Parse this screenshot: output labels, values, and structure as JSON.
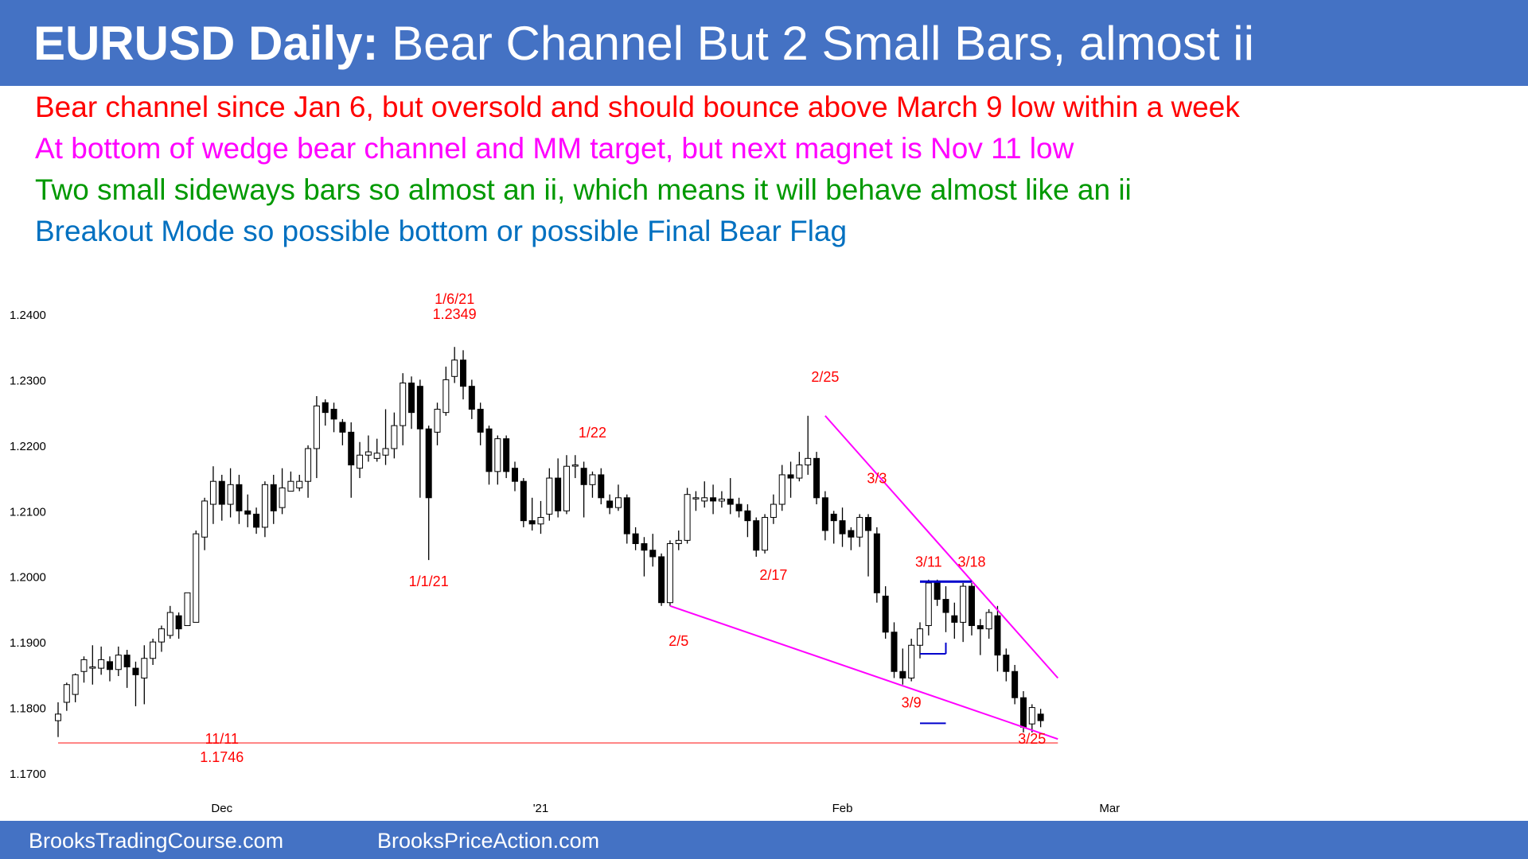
{
  "header": {
    "title_bold": "EURUSD Daily:",
    "title_rest": " Bear Channel But 2 Small Bars, almost ii"
  },
  "bullets": [
    {
      "text": "Bear channel since Jan 6, but oversold and should bounce above March 9 low within a week",
      "color": "#ff0000"
    },
    {
      "text": "At bottom of wedge bear channel and MM target, but next magnet is Nov 11 low",
      "color": "#ff00ff"
    },
    {
      "text": "Two small sideways bars so almost an ii, which means it will behave almost like an ii",
      "color": "#009900"
    },
    {
      "text": "Breakout Mode so possible bottom or possible Final Bear Flag",
      "color": "#0070c0"
    }
  ],
  "footer": {
    "left": "BrooksTradingCourse.com",
    "right": "BrooksPriceAction.com"
  },
  "colors": {
    "banner": "#4472c4",
    "annotation": "#ff0000",
    "wedge": "#ff00ff",
    "support_line": "#ff8080",
    "range_marker": "#0000cc"
  },
  "chart_data": {
    "type": "candlestick",
    "ylim": [
      1.17,
      1.24
    ],
    "y_ticks": [
      "1.2400",
      "1.2300",
      "1.2200",
      "1.2100",
      "1.2000",
      "1.1900",
      "1.1800",
      "1.1700"
    ],
    "x_tick_labels": [
      {
        "label": "Dec",
        "bar": 19
      },
      {
        "label": "'21",
        "bar": 56
      },
      {
        "label": "Feb",
        "bar": 91
      },
      {
        "label": "Mar",
        "bar": 122
      }
    ],
    "candles": [
      [
        1.178,
        1.179,
        1.1755,
        1.1808
      ],
      [
        1.1808,
        1.1835,
        1.1795,
        1.1838
      ],
      [
        1.182,
        1.185,
        1.1808,
        1.1852
      ],
      [
        1.1855,
        1.1873,
        1.1838,
        1.1878
      ],
      [
        1.186,
        1.1862,
        1.1835,
        1.1895
      ],
      [
        1.186,
        1.1873,
        1.185,
        1.1893
      ],
      [
        1.187,
        1.1858,
        1.184,
        1.1878
      ],
      [
        1.1858,
        1.188,
        1.1848,
        1.1893
      ],
      [
        1.188,
        1.1862,
        1.183,
        1.1888
      ],
      [
        1.186,
        1.185,
        1.1802,
        1.187
      ],
      [
        1.1845,
        1.1875,
        1.1805,
        1.1895
      ],
      [
        1.1875,
        1.19,
        1.1865,
        1.1905
      ],
      [
        1.19,
        1.192,
        1.1885,
        1.1925
      ],
      [
        1.191,
        1.1945,
        1.1905,
        1.1955
      ],
      [
        1.194,
        1.192,
        1.1905,
        1.1945
      ],
      [
        1.1925,
        1.1975,
        1.1925,
        1.1975
      ],
      [
        1.193,
        1.2065,
        1.193,
        1.207
      ],
      [
        1.206,
        1.2115,
        1.204,
        1.212
      ],
      [
        1.211,
        1.2145,
        1.208,
        1.2168
      ],
      [
        1.2145,
        1.211,
        1.2085,
        1.2155
      ],
      [
        1.211,
        1.214,
        1.209,
        1.2165
      ],
      [
        1.214,
        1.21,
        1.208,
        1.2155
      ],
      [
        1.21,
        1.2095,
        1.2075,
        1.2125
      ],
      [
        1.2095,
        1.2075,
        1.2065,
        1.2105
      ],
      [
        1.2075,
        1.214,
        1.206,
        1.2145
      ],
      [
        1.214,
        1.21,
        1.208,
        1.2155
      ],
      [
        1.2105,
        1.2135,
        1.2095,
        1.2165
      ],
      [
        1.213,
        1.2145,
        1.213,
        1.216
      ],
      [
        1.2135,
        1.2145,
        1.213,
        1.2155
      ],
      [
        1.2145,
        1.2195,
        1.212,
        1.22
      ],
      [
        1.2195,
        1.226,
        1.215,
        1.2275
      ],
      [
        1.2265,
        1.225,
        1.223,
        1.227
      ],
      [
        1.2255,
        1.224,
        1.222,
        1.2265
      ],
      [
        1.2235,
        1.222,
        1.22,
        1.224
      ],
      [
        1.222,
        1.217,
        1.212,
        1.2235
      ],
      [
        1.2165,
        1.2185,
        1.215,
        1.2205
      ],
      [
        1.2185,
        1.219,
        1.2175,
        1.2215
      ],
      [
        1.218,
        1.2188,
        1.2175,
        1.221
      ],
      [
        1.2185,
        1.2195,
        1.217,
        1.2255
      ],
      [
        1.2195,
        1.223,
        1.218,
        1.225
      ],
      [
        1.223,
        1.2295,
        1.22,
        1.231
      ],
      [
        1.2295,
        1.225,
        1.2225,
        1.2305
      ],
      [
        1.229,
        1.2225,
        1.212,
        1.23
      ],
      [
        1.2225,
        1.212,
        1.2025,
        1.223
      ],
      [
        1.222,
        1.2255,
        1.22,
        1.2265
      ],
      [
        1.225,
        1.23,
        1.2245,
        1.232
      ],
      [
        1.2305,
        1.233,
        1.2295,
        1.235
      ],
      [
        1.233,
        1.229,
        1.227,
        1.2345
      ],
      [
        1.229,
        1.2255,
        1.224,
        1.23
      ],
      [
        1.2255,
        1.222,
        1.22,
        1.2265
      ],
      [
        1.2225,
        1.216,
        1.214,
        1.223
      ],
      [
        1.216,
        1.221,
        1.214,
        1.2215
      ],
      [
        1.221,
        1.216,
        1.215,
        1.2215
      ],
      [
        1.2165,
        1.2145,
        1.213,
        1.2175
      ],
      [
        1.2145,
        1.2085,
        1.2075,
        1.215
      ],
      [
        1.2085,
        1.208,
        1.207,
        1.212
      ],
      [
        1.208,
        1.209,
        1.2065,
        1.2115
      ],
      [
        1.2095,
        1.215,
        1.2085,
        1.2165
      ],
      [
        1.215,
        1.21,
        1.209,
        1.218
      ],
      [
        1.21,
        1.2168,
        1.2095,
        1.2185
      ],
      [
        1.217,
        1.217,
        1.215,
        1.2185
      ],
      [
        1.2165,
        1.214,
        1.209,
        1.2175
      ],
      [
        1.214,
        1.2155,
        1.212,
        1.216
      ],
      [
        1.2155,
        1.212,
        1.211,
        1.2165
      ],
      [
        1.2115,
        1.2105,
        1.2095,
        1.2125
      ],
      [
        1.2105,
        1.212,
        1.21,
        1.214
      ],
      [
        1.212,
        1.2065,
        1.205,
        1.2125
      ],
      [
        1.2065,
        1.205,
        1.204,
        1.2075
      ],
      [
        1.205,
        1.204,
        1.2,
        1.206
      ],
      [
        1.204,
        1.203,
        1.2015,
        1.2065
      ],
      [
        1.203,
        1.196,
        1.1955,
        1.2035
      ],
      [
        1.196,
        1.205,
        1.1955,
        1.2055
      ],
      [
        1.205,
        1.2055,
        1.204,
        1.207
      ],
      [
        1.2055,
        1.2125,
        1.205,
        1.2135
      ],
      [
        1.212,
        1.212,
        1.21,
        1.213
      ],
      [
        1.2115,
        1.212,
        1.2105,
        1.2145
      ],
      [
        1.212,
        1.2115,
        1.2095,
        1.214
      ],
      [
        1.2115,
        1.2118,
        1.2105,
        1.213
      ],
      [
        1.2118,
        1.211,
        1.2095,
        1.215
      ],
      [
        1.211,
        1.21,
        1.209,
        1.212
      ],
      [
        1.21,
        1.2085,
        1.206,
        1.211
      ],
      [
        1.2085,
        1.204,
        1.203,
        1.209
      ],
      [
        1.204,
        1.209,
        1.2035,
        1.2095
      ],
      [
        1.209,
        1.211,
        1.208,
        1.2125
      ],
      [
        1.211,
        1.2155,
        1.21,
        1.217
      ],
      [
        1.2155,
        1.215,
        1.212,
        1.2175
      ],
      [
        1.215,
        1.217,
        1.2145,
        1.219
      ],
      [
        1.217,
        1.218,
        1.2155,
        1.2245
      ],
      [
        1.218,
        1.212,
        1.211,
        1.219
      ],
      [
        1.212,
        1.207,
        1.2055,
        1.213
      ]
    ],
    "candles_march": [
      [
        1.2095,
        1.2085,
        1.205,
        1.21
      ],
      [
        1.2085,
        1.2065,
        1.2045,
        1.2105
      ],
      [
        1.207,
        1.206,
        1.204,
        1.2075
      ],
      [
        1.206,
        1.209,
        1.2045,
        1.2095
      ],
      [
        1.209,
        1.207,
        1.2,
        1.2095
      ],
      [
        1.2065,
        1.1975,
        1.196,
        1.2075
      ],
      [
        1.197,
        1.1915,
        1.1905,
        1.1985
      ],
      [
        1.1915,
        1.1855,
        1.1845,
        1.193
      ],
      [
        1.1855,
        1.1845,
        1.1835,
        1.189
      ],
      [
        1.1845,
        1.1895,
        1.184,
        1.1905
      ],
      [
        1.1895,
        1.192,
        1.1875,
        1.193
      ],
      [
        1.1925,
        1.199,
        1.191,
        1.1995
      ],
      [
        1.199,
        1.1965,
        1.1955,
        1.1995
      ],
      [
        1.1965,
        1.1945,
        1.1915,
        1.1985
      ],
      [
        1.194,
        1.193,
        1.1905,
        1.196
      ],
      [
        1.193,
        1.1985,
        1.19,
        1.199
      ],
      [
        1.1985,
        1.1925,
        1.191,
        1.199
      ],
      [
        1.1925,
        1.192,
        1.188,
        1.1935
      ],
      [
        1.192,
        1.1945,
        1.1905,
        1.195
      ],
      [
        1.194,
        1.188,
        1.1855,
        1.1955
      ],
      [
        1.188,
        1.1855,
        1.184,
        1.189
      ],
      [
        1.1855,
        1.1815,
        1.1805,
        1.1865
      ],
      [
        1.1815,
        1.177,
        1.1762,
        1.1825
      ],
      [
        1.1775,
        1.18,
        1.1762,
        1.1805
      ],
      [
        1.179,
        1.178,
        1.177,
        1.1798
      ]
    ],
    "annotations": [
      {
        "text": "1/6/21",
        "bar": 46,
        "price": 1.2416
      },
      {
        "text": "1.2349",
        "bar": 46,
        "price": 1.2393
      },
      {
        "text": "1/1/21",
        "bar": 43,
        "price": 1.1985
      },
      {
        "text": "1/22",
        "bar": 62,
        "price": 1.2212
      },
      {
        "text": "2/25",
        "bar": 89,
        "price": 1.2297
      },
      {
        "text": "3/3",
        "bar": 95,
        "price": 1.2142
      },
      {
        "text": "2/17",
        "bar": 83,
        "price": 1.1995
      },
      {
        "text": "2/5",
        "bar": 72,
        "price": 1.1894
      },
      {
        "text": "3/11",
        "bar": 101,
        "price": 1.2015
      },
      {
        "text": "3/18",
        "bar": 106,
        "price": 1.2015
      },
      {
        "text": "3/9",
        "bar": 99,
        "price": 1.18
      },
      {
        "text": "3/25",
        "bar": 113,
        "price": 1.1745
      },
      {
        "text": "11/11",
        "bar": 19,
        "price": 1.1745
      },
      {
        "text": "1.1746",
        "bar": 19,
        "price": 1.1717
      }
    ],
    "lines": {
      "wedge_top": [
        [
          89,
          1.2245
        ],
        [
          116,
          1.1845
        ]
      ],
      "wedge_bottom": [
        [
          71,
          1.1955
        ],
        [
          116,
          1.1752
        ]
      ],
      "support": [
        [
          0,
          1.1746
        ],
        [
          116,
          1.1746
        ]
      ],
      "range_high": [
        [
          100,
          1.1992
        ],
        [
          106,
          1.1992
        ]
      ],
      "range_low": [
        [
          100,
          1.1882
        ],
        [
          103,
          1.1882
        ]
      ],
      "mm_target": [
        [
          100,
          1.1776
        ],
        [
          103,
          1.1776
        ]
      ]
    }
  }
}
